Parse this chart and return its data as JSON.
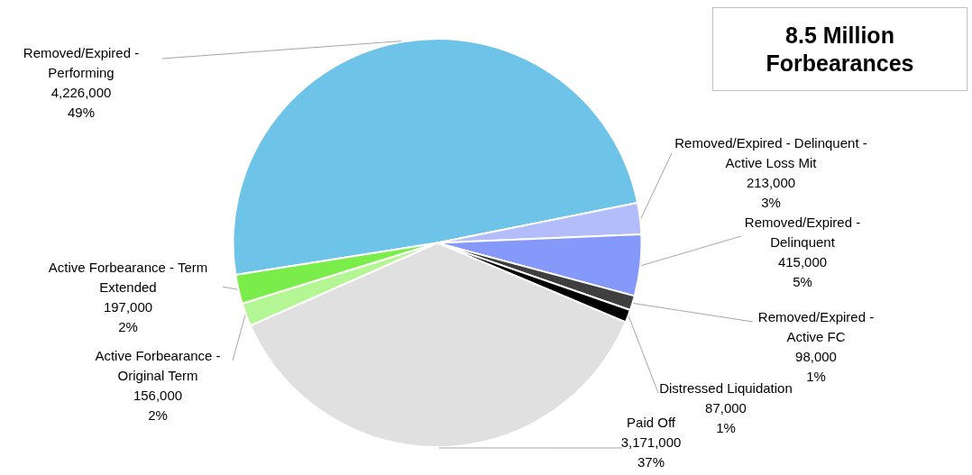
{
  "chart_data": {
    "type": "pie",
    "title": "8.5 Million Forbearances",
    "categories": [
      "Removed/Expired - Performing",
      "Removed/Expired - Delinquent - Active Loss Mit",
      "Removed/Expired - Delinquent",
      "Removed/Expired - Active FC",
      "Distressed Liquidation",
      "Paid Off",
      "Active Forbearance - Original Term",
      "Active Forbearance - Term Extended"
    ],
    "values": [
      4226000,
      213000,
      415000,
      98000,
      87000,
      3171000,
      156000,
      197000
    ],
    "colors": [
      "#6ec3e8",
      "#b3bdfc",
      "#8599fb",
      "#3f3f3f",
      "#000000",
      "#e0e0e0",
      "#b4f594",
      "#7aed4a"
    ],
    "value_labels": [
      "4,226,000\n49%",
      "213,000\n3%",
      "415,000\n5%",
      "98,000\n1%",
      "87,000\n1%",
      "3,171,000\n37%",
      "156,000\n2%",
      "197,000\n2%"
    ]
  }
}
